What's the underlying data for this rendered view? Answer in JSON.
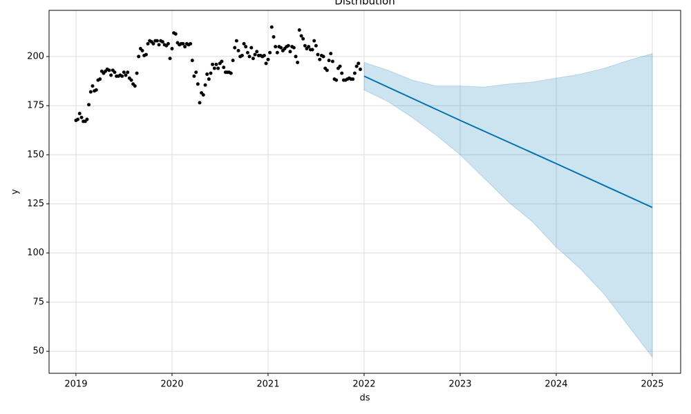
{
  "chart_data": {
    "type": "forecast",
    "title": "Distribution",
    "x_label": "ds",
    "y_label": "y",
    "grid": true,
    "xlim": [
      2018.72,
      2025.295
    ],
    "ylim": [
      38.8,
      223.5
    ],
    "xticks": [
      2019,
      2020,
      2021,
      2022,
      2023,
      2024,
      2025
    ],
    "yticks": [
      50,
      75,
      100,
      125,
      150,
      175,
      200
    ],
    "observed": {
      "color": "#000000",
      "x": [
        2019,
        2019.019,
        2019.038,
        2019.058,
        2019.077,
        2019.096,
        2019.115,
        2019.134,
        2019.154,
        2019.173,
        2019.192,
        2019.211,
        2019.23,
        2019.25,
        2019.269,
        2019.288,
        2019.307,
        2019.326,
        2019.346,
        2019.365,
        2019.384,
        2019.403,
        2019.422,
        2019.442,
        2019.461,
        2019.48,
        2019.499,
        2019.518,
        2019.538,
        2019.557,
        2019.576,
        2019.595,
        2019.614,
        2019.634,
        2019.653,
        2019.672,
        2019.691,
        2019.71,
        2019.73,
        2019.749,
        2019.768,
        2019.787,
        2019.806,
        2019.826,
        2019.845,
        2019.864,
        2019.883,
        2019.902,
        2019.922,
        2019.941,
        2019.96,
        2019.979,
        2020,
        2020.019,
        2020.038,
        2020.058,
        2020.077,
        2020.096,
        2020.115,
        2020.134,
        2020.154,
        2020.173,
        2020.192,
        2020.211,
        2020.23,
        2020.25,
        2020.269,
        2020.288,
        2020.307,
        2020.326,
        2020.346,
        2020.365,
        2020.384,
        2020.403,
        2020.422,
        2020.442,
        2020.461,
        2020.48,
        2020.499,
        2020.518,
        2020.538,
        2020.557,
        2020.576,
        2020.595,
        2020.614,
        2020.634,
        2020.653,
        2020.672,
        2020.691,
        2020.71,
        2020.73,
        2020.749,
        2020.768,
        2020.787,
        2020.806,
        2020.826,
        2020.845,
        2020.864,
        2020.883,
        2020.902,
        2020.922,
        2020.941,
        2020.96,
        2020.979,
        2021,
        2021.019,
        2021.038,
        2021.058,
        2021.077,
        2021.096,
        2021.115,
        2021.134,
        2021.154,
        2021.173,
        2021.192,
        2021.211,
        2021.23,
        2021.25,
        2021.269,
        2021.288,
        2021.307,
        2021.326,
        2021.346,
        2021.365,
        2021.384,
        2021.403,
        2021.422,
        2021.442,
        2021.461,
        2021.48,
        2021.499,
        2021.518,
        2021.538,
        2021.557,
        2021.576,
        2021.595,
        2021.614,
        2021.634,
        2021.653,
        2021.672,
        2021.691,
        2021.71,
        2021.73,
        2021.749,
        2021.768,
        2021.787,
        2021.806,
        2021.826,
        2021.845,
        2021.864,
        2021.883,
        2021.902,
        2021.922,
        2021.941,
        2021.96
      ],
      "values": [
        167.5,
        168,
        171,
        169,
        167,
        167,
        168,
        175.5,
        182,
        185,
        182.5,
        183,
        188,
        188.5,
        192.5,
        191.5,
        192.5,
        193.5,
        193,
        190.5,
        193,
        192,
        190,
        190,
        190.5,
        190,
        192,
        190.5,
        192,
        189,
        188,
        186,
        185,
        191.5,
        200,
        204,
        203,
        200.5,
        201,
        206.5,
        208,
        207.5,
        206.5,
        208,
        208,
        206,
        208,
        207.5,
        206,
        205.5,
        206.5,
        199,
        204,
        212,
        211.5,
        207,
        206,
        206.5,
        206.5,
        205,
        206.5,
        206,
        206.5,
        198,
        190,
        192,
        186,
        176.5,
        181.5,
        180.5,
        185.5,
        191,
        188.5,
        191.5,
        196,
        194,
        196,
        194,
        196.5,
        197.5,
        194.5,
        192,
        192,
        192,
        191.5,
        198,
        204.5,
        208,
        203,
        200,
        200.5,
        206.5,
        205,
        202,
        200,
        204.5,
        199,
        201,
        202.5,
        200.5,
        200.5,
        200,
        200.5,
        196.5,
        198.5,
        202,
        215,
        210,
        205,
        202,
        205,
        204.5,
        203,
        204,
        205,
        205.5,
        202.5,
        205,
        204.5,
        200,
        197,
        213.5,
        210.5,
        209,
        205.5,
        204,
        205,
        203.5,
        203.5,
        208,
        205.5,
        201,
        198.5,
        200.5,
        200,
        194,
        193,
        198,
        201.5,
        197.5,
        188.5,
        188,
        194,
        195,
        191.5,
        188,
        188,
        188.5,
        189,
        188.5,
        188.5,
        191.5,
        195,
        196.5,
        193.5
      ]
    },
    "forecast": {
      "color": "#0072b2",
      "x": [
        2022,
        2023,
        2024,
        2025
      ],
      "values": [
        190,
        167.5,
        145.5,
        123.2
      ]
    },
    "interval": {
      "color": "#0072b2",
      "x": [
        2022,
        2022.25,
        2022.5,
        2022.75,
        2023,
        2023.25,
        2023.5,
        2023.75,
        2024,
        2024.25,
        2024.5,
        2024.75,
        2025
      ],
      "upper": [
        197,
        193,
        188,
        185,
        185,
        184.5,
        186,
        187,
        189,
        191,
        194,
        198,
        201.5
      ],
      "lower": [
        183,
        177,
        169,
        160,
        150,
        138,
        126,
        116,
        103,
        92,
        79,
        63,
        47
      ]
    }
  }
}
